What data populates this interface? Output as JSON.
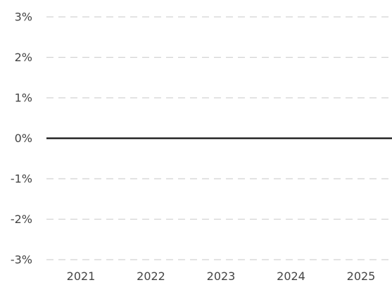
{
  "chart_data": {
    "type": "line",
    "title": "",
    "xlabel": "",
    "ylabel": "",
    "x": [
      "2021",
      "2022",
      "2023",
      "2024",
      "2025"
    ],
    "y_ticks": [
      3,
      2,
      1,
      0,
      -1,
      -2,
      -3
    ],
    "y_tick_labels": [
      "3%",
      "2%",
      "1%",
      "0%",
      "-1%",
      "-2%",
      "-3%"
    ],
    "ylim": [
      -3,
      3
    ],
    "grid": true,
    "reference_lines": [
      {
        "y": 0
      }
    ],
    "series": []
  },
  "colors": {
    "grid": "#d2d2d2",
    "zero_line": "#111111",
    "tick_text": "#444444"
  }
}
